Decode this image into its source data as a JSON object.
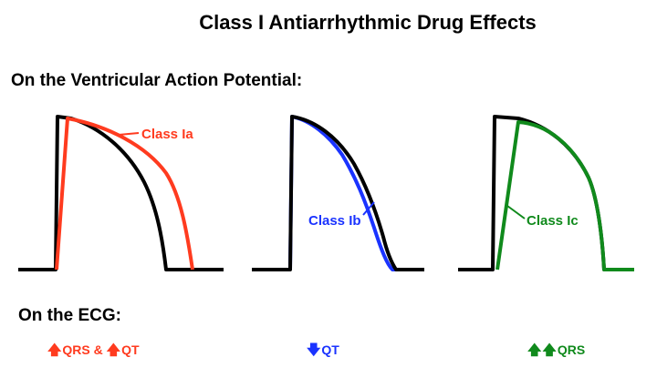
{
  "title": "Class I Antiarrhythmic Drug Effects",
  "section_ap": "On the Ventricular Action Potential:",
  "section_ecg": "On the ECG:",
  "colors": {
    "baseline": "#000000",
    "class_ia": "#ff3b1f",
    "class_ib": "#1a33ff",
    "class_ic": "#108a1c"
  },
  "panels": [
    {
      "label": "Class Ia",
      "color": "#ff3b1f"
    },
    {
      "label": "Class Ib",
      "color": "#1a33ff"
    },
    {
      "label": "Class Ic",
      "color": "#108a1c"
    }
  ],
  "ecg_effects": [
    {
      "arrow_icon": "up-arrow-icon",
      "text1": "QRS & ",
      "arrow2_icon": "up-arrow-icon",
      "text2": "QT",
      "color": "#ff3b1f"
    },
    {
      "arrow_icon": "down-arrow-icon",
      "text1": "QT",
      "color": "#1a33ff"
    },
    {
      "arrow_icon": "up-arrow-icon",
      "arrow2_icon": "up-arrow-icon",
      "text1": "QRS",
      "color": "#108a1c"
    }
  ]
}
